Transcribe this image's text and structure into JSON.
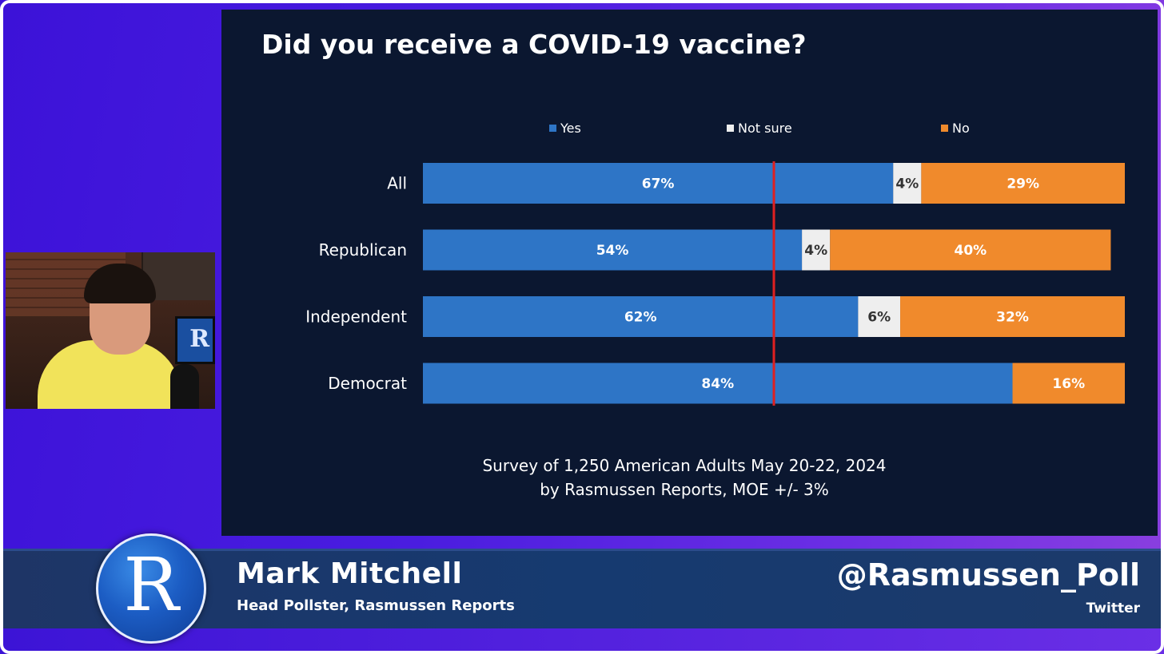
{
  "chart_data": {
    "type": "bar",
    "stacked": true,
    "orientation": "horizontal",
    "title": "Did you receive a COVID-19 vaccine?",
    "categories": [
      "All",
      "Republican",
      "Independent",
      "Democrat"
    ],
    "series": [
      {
        "name": "Yes",
        "color": "#2e75c6",
        "label_color": "#ffffff",
        "values": [
          67,
          54,
          62,
          84
        ]
      },
      {
        "name": "Not sure",
        "color": "#eeeeee",
        "label_color": "#333333",
        "values": [
          4,
          4,
          6,
          0
        ]
      },
      {
        "name": "No",
        "color": "#f08a2c",
        "label_color": "#ffffff",
        "values": [
          29,
          40,
          32,
          16
        ]
      }
    ],
    "value_suffix": "%",
    "xlim": [
      0,
      100
    ],
    "reference_line": {
      "value": 50,
      "color": "#e02020"
    },
    "legend_position": "top",
    "footnote_lines": [
      "Survey of 1,250 American Adults May 20-22, 2024",
      "by Rasmussen Reports, MOE +/- 3%"
    ]
  },
  "lower_third": {
    "logo_letter": "R",
    "name": "Mark Mitchell",
    "title": "Head Pollster, Rasmussen Reports",
    "handle": "@Rasmussen_Poll",
    "platform": "Twitter"
  },
  "webcam": {
    "monitor_letter": "R"
  }
}
